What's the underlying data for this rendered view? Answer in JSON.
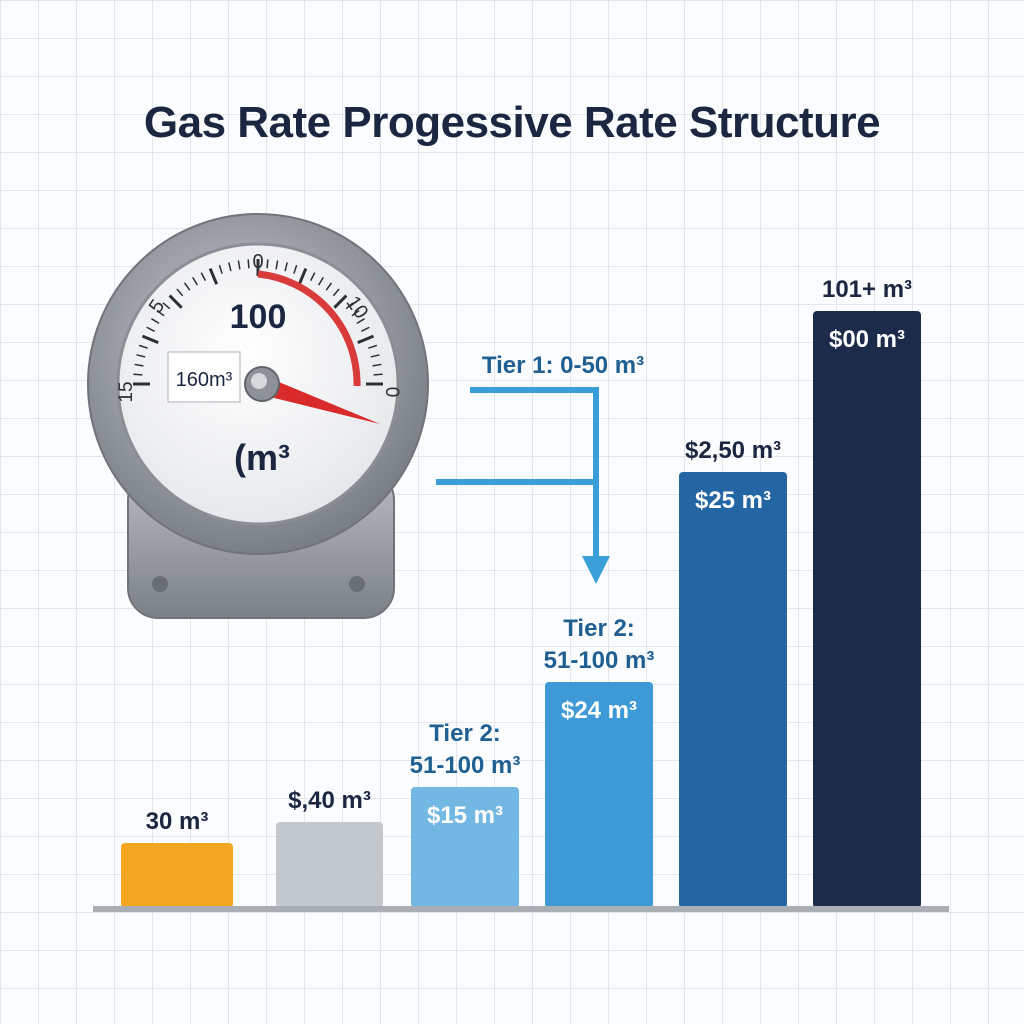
{
  "chart_data": {
    "type": "bar",
    "title": "Gas Rate Progessive Rate Structure",
    "categories": [
      "30 m³",
      "$,40 m³",
      "Tier 2: 51-100 m³",
      "Tier 2: 51-100 m³",
      "$2,50 m³",
      "101+ m³"
    ],
    "values": [
      9,
      12,
      17,
      32,
      62,
      85
    ],
    "ylim": [
      0,
      100
    ],
    "bar_top_labels": [
      [
        "30 m³"
      ],
      [
        "$,40 m³"
      ],
      [
        "Tier 2:",
        "51-100 m³"
      ],
      [
        "Tier 2:",
        "51-100 m³"
      ],
      [
        "$2,50 m³"
      ],
      [
        "101+ m³"
      ]
    ],
    "bar_value_labels": [
      "",
      "",
      "$15 m³",
      "$24 m³",
      "$25 m³",
      "$00 m³"
    ],
    "bar_colors": [
      "#f5a623",
      "#c3c8cd",
      "#73b8e3",
      "#3d9ad6",
      "#2466a3",
      "#1c2b4a"
    ],
    "bar_label_colors": [
      "#1b2640",
      "#1b2640",
      "#1f5f92",
      "#1f5f92",
      "#1b2640",
      "#1b2640"
    ],
    "annotation": "Tier 1: 0-50 m³",
    "grid": true
  },
  "gauge": {
    "ticks": [
      "0",
      "5",
      "10",
      "15",
      "0"
    ],
    "reading": "100",
    "display": "160m³",
    "unit": "(m³",
    "icon": "gas-meter-icon"
  },
  "colors": {
    "title": "#1b2640",
    "arrow": "#3a9fd8",
    "gauge_arc": "#d93a3a",
    "needle": "#d92b2b"
  }
}
